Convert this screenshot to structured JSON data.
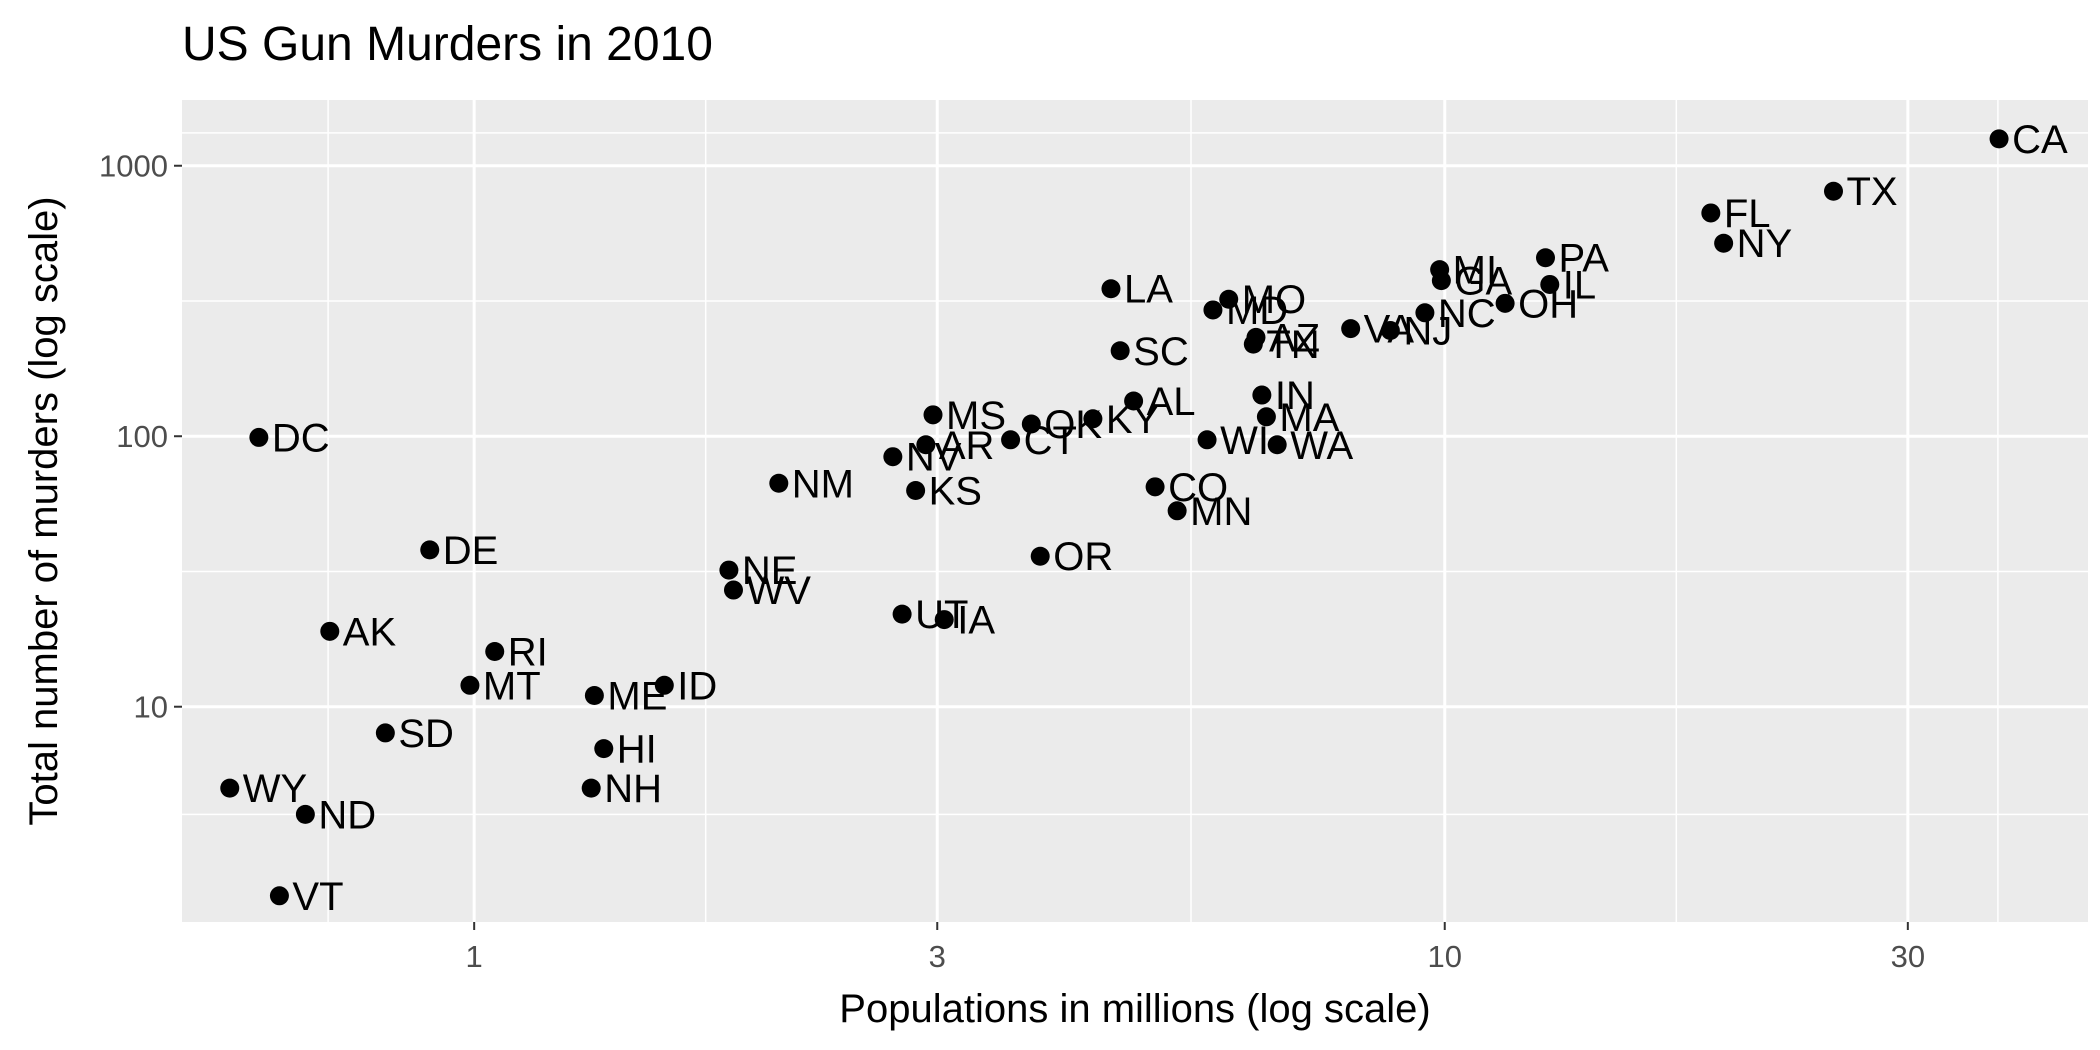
{
  "chart_data": {
    "type": "scatter",
    "title": "US Gun Murders in 2010",
    "xlabel": "Populations in millions (log scale)",
    "ylabel": "Total number of murders (log scale)",
    "x_scale": "log",
    "y_scale": "log",
    "xlim": [
      0.5,
      46
    ],
    "ylim": [
      1.6,
      1750
    ],
    "x_ticks": [
      1,
      3,
      10,
      30
    ],
    "x_tick_labels": [
      "1",
      "3",
      "10",
      "30"
    ],
    "y_ticks": [
      10,
      100,
      1000
    ],
    "y_tick_labels": [
      "10",
      "100",
      "1000"
    ],
    "grid": true,
    "background": "#ebebeb",
    "grid_color": "#ffffff",
    "point_color": "#000000",
    "points": [
      {
        "label": "CA",
        "x": 37.25,
        "y": 1257
      },
      {
        "label": "TX",
        "x": 25.15,
        "y": 805
      },
      {
        "label": "FL",
        "x": 18.8,
        "y": 669
      },
      {
        "label": "NY",
        "x": 19.38,
        "y": 517
      },
      {
        "label": "PA",
        "x": 12.7,
        "y": 457
      },
      {
        "label": "MI",
        "x": 9.88,
        "y": 413
      },
      {
        "label": "GA",
        "x": 9.92,
        "y": 376
      },
      {
        "label": "IL",
        "x": 12.83,
        "y": 364
      },
      {
        "label": "OH",
        "x": 11.54,
        "y": 310
      },
      {
        "label": "NC",
        "x": 9.54,
        "y": 286
      },
      {
        "label": "NJ",
        "x": 8.79,
        "y": 246
      },
      {
        "label": "VA",
        "x": 8.0,
        "y": 250
      },
      {
        "label": "LA",
        "x": 4.53,
        "y": 351
      },
      {
        "label": "MO",
        "x": 5.99,
        "y": 321
      },
      {
        "label": "MD",
        "x": 5.77,
        "y": 293
      },
      {
        "label": "TN",
        "x": 6.35,
        "y": 219
      },
      {
        "label": "AZ",
        "x": 6.39,
        "y": 232
      },
      {
        "label": "SC",
        "x": 4.63,
        "y": 207
      },
      {
        "label": "IN",
        "x": 6.48,
        "y": 142
      },
      {
        "label": "MA",
        "x": 6.55,
        "y": 118
      },
      {
        "label": "WA",
        "x": 6.72,
        "y": 93
      },
      {
        "label": "WI",
        "x": 5.69,
        "y": 97
      },
      {
        "label": "AL",
        "x": 4.78,
        "y": 135
      },
      {
        "label": "KY",
        "x": 4.34,
        "y": 116
      },
      {
        "label": "OK",
        "x": 3.75,
        "y": 111
      },
      {
        "label": "CT",
        "x": 3.57,
        "y": 97
      },
      {
        "label": "MS",
        "x": 2.97,
        "y": 120
      },
      {
        "label": "AR",
        "x": 2.92,
        "y": 93
      },
      {
        "label": "NV",
        "x": 2.7,
        "y": 84
      },
      {
        "label": "KS",
        "x": 2.85,
        "y": 63
      },
      {
        "label": "NM",
        "x": 2.06,
        "y": 67
      },
      {
        "label": "CO",
        "x": 5.03,
        "y": 65
      },
      {
        "label": "MN",
        "x": 5.3,
        "y": 53
      },
      {
        "label": "OR",
        "x": 3.83,
        "y": 36
      },
      {
        "label": "UT",
        "x": 2.76,
        "y": 22
      },
      {
        "label": "IA",
        "x": 3.05,
        "y": 21
      },
      {
        "label": "NE",
        "x": 1.83,
        "y": 32
      },
      {
        "label": "WV",
        "x": 1.85,
        "y": 27
      },
      {
        "label": "DC",
        "x": 0.6,
        "y": 99
      },
      {
        "label": "DE",
        "x": 0.9,
        "y": 38
      },
      {
        "label": "AK",
        "x": 0.71,
        "y": 19
      },
      {
        "label": "RI",
        "x": 1.05,
        "y": 16
      },
      {
        "label": "MT",
        "x": 0.99,
        "y": 12
      },
      {
        "label": "ME",
        "x": 1.33,
        "y": 11
      },
      {
        "label": "ID",
        "x": 1.57,
        "y": 12
      },
      {
        "label": "HI",
        "x": 1.36,
        "y": 7
      },
      {
        "label": "NH",
        "x": 1.32,
        "y": 5
      },
      {
        "label": "SD",
        "x": 0.81,
        "y": 8
      },
      {
        "label": "WY",
        "x": 0.56,
        "y": 5
      },
      {
        "label": "ND",
        "x": 0.67,
        "y": 4
      },
      {
        "label": "VT",
        "x": 0.63,
        "y": 2
      }
    ]
  }
}
